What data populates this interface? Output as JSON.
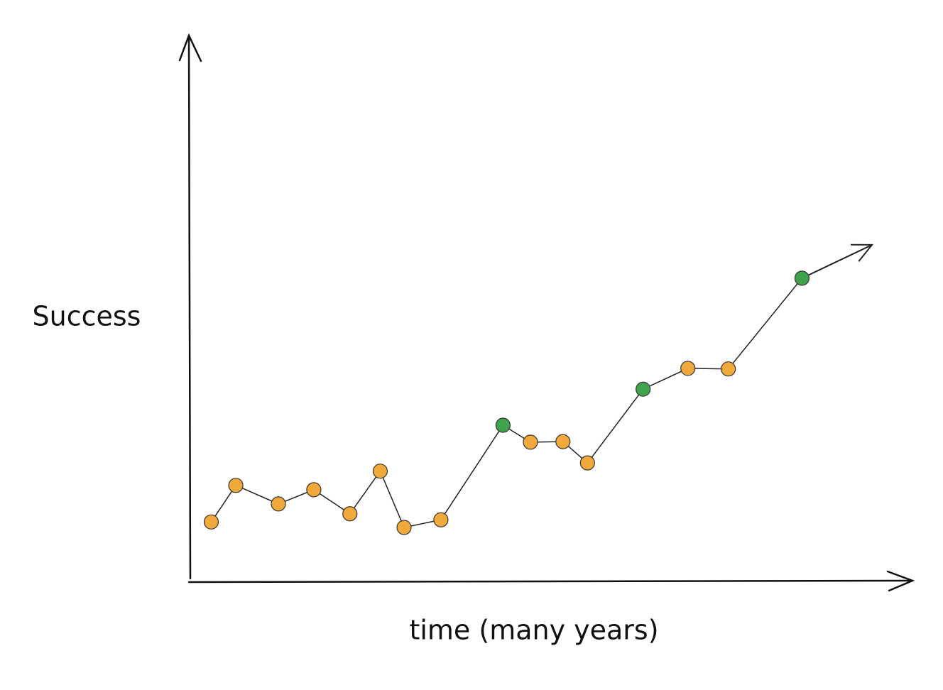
{
  "chart_data": {
    "type": "line",
    "x_label": "time (many years)",
    "y_label": "Success",
    "x": [
      2.9,
      6.3,
      12.2,
      17.1,
      22.1,
      26.3,
      29.6,
      34.7,
      43.3,
      47.1,
      51.6,
      55.0,
      62.7,
      68.9,
      74.5,
      84.7
    ],
    "values": [
      11.0,
      17.7,
      14.3,
      16.9,
      12.5,
      20.3,
      10.0,
      11.4,
      28.7,
      25.6,
      25.7,
      21.8,
      35.3,
      39.1,
      39.0,
      55.6
    ],
    "point_colors": [
      "#f2a93b",
      "#f2a93b",
      "#f2a93b",
      "#f2a93b",
      "#f2a93b",
      "#f2a93b",
      "#f2a93b",
      "#f2a93b",
      "#3fa34d",
      "#f2a93b",
      "#f2a93b",
      "#f2a93b",
      "#3fa34d",
      "#f2a93b",
      "#f2a93b",
      "#3fa34d"
    ],
    "trend_arrow": {
      "x": 94.4,
      "y": 61.7
    },
    "line_color": "#222",
    "xlim": [
      0,
      100
    ],
    "ylim": [
      0,
      100
    ]
  }
}
